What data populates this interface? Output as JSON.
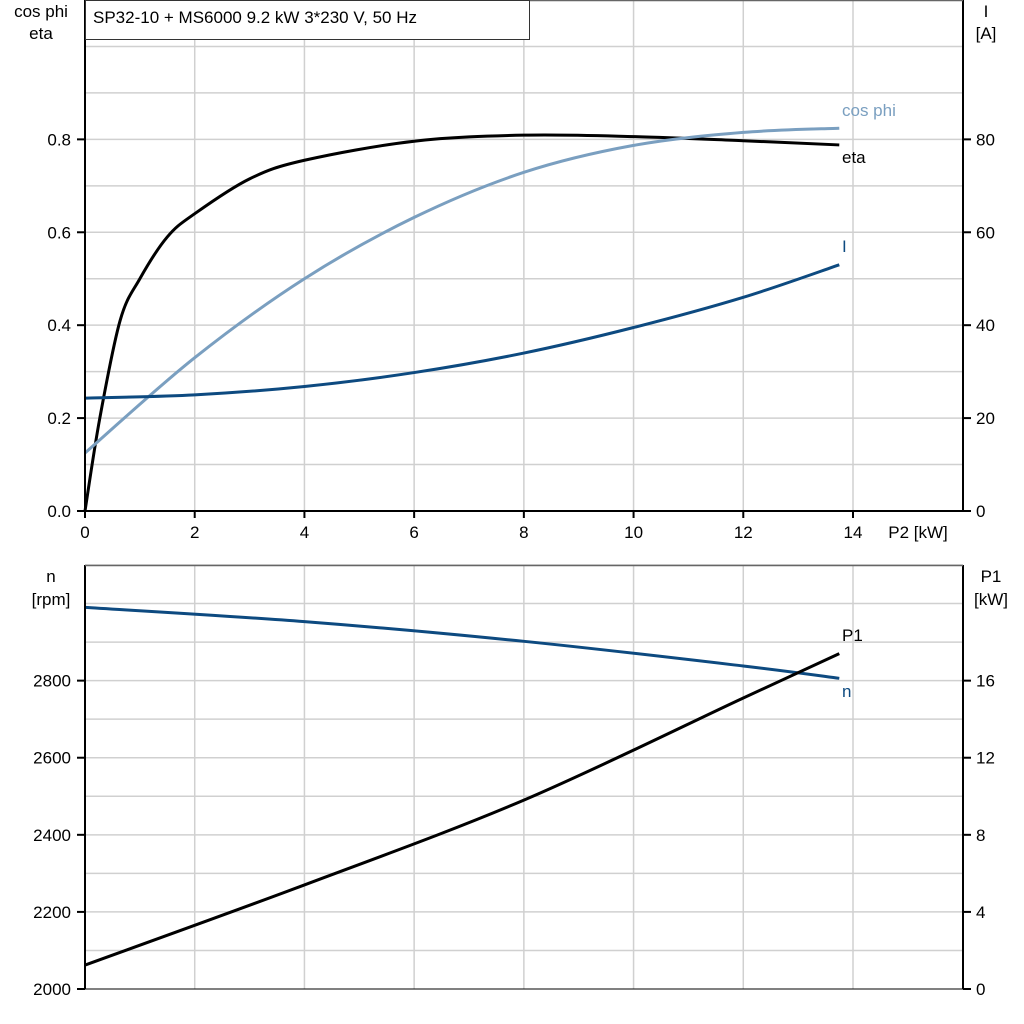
{
  "title": "SP32-10 + MS6000   9.2 kW   3*230 V, 50 Hz",
  "chart_data": [
    {
      "type": "line",
      "xlabel": "P2 [kW]",
      "xlim": [
        0,
        16
      ],
      "xticks": [
        0,
        2,
        4,
        6,
        8,
        10,
        12,
        14
      ],
      "ylabel_left": [
        "cos phi",
        "eta"
      ],
      "ylim_left": [
        0,
        1.1
      ],
      "yticks_left": [
        0.0,
        0.2,
        0.4,
        0.6,
        0.8
      ],
      "ylabel_right": [
        "I",
        "[A]"
      ],
      "ylim_right": [
        0,
        110
      ],
      "yticks_right": [
        0,
        20,
        40,
        60,
        80
      ],
      "grid": true,
      "series": [
        {
          "name": "eta",
          "axis": "left",
          "color": "#000000",
          "x": [
            0,
            0.27,
            0.64,
            1,
            1.5,
            2,
            3,
            4,
            6,
            8,
            10,
            12,
            13.75
          ],
          "y": [
            0,
            0.2,
            0.41,
            0.5,
            0.59,
            0.64,
            0.715,
            0.755,
            0.796,
            0.809,
            0.806,
            0.797,
            0.788
          ]
        },
        {
          "name": "cos phi",
          "axis": "left",
          "color": "#7a9fc0",
          "x": [
            0,
            2,
            4,
            6,
            8,
            10,
            12,
            13.75
          ],
          "y": [
            0.125,
            0.33,
            0.5,
            0.632,
            0.729,
            0.787,
            0.815,
            0.824
          ]
        },
        {
          "name": "I",
          "axis": "right",
          "color": "#0d4a80",
          "x": [
            0,
            2,
            4,
            6,
            8,
            10,
            12,
            13.75
          ],
          "y": [
            24.3,
            25,
            26.8,
            29.8,
            34,
            39.5,
            46,
            53
          ]
        }
      ]
    },
    {
      "type": "line",
      "xlim": [
        0,
        16
      ],
      "ylabel_left": [
        "n",
        "[rpm]"
      ],
      "ylim_left": [
        2000,
        3100
      ],
      "yticks_left": [
        2000,
        2200,
        2400,
        2600,
        2800
      ],
      "ylabel_right": [
        "P1",
        "[kW]"
      ],
      "ylim_right": [
        0,
        22
      ],
      "yticks_right": [
        0,
        4,
        8,
        12,
        16
      ],
      "grid": true,
      "series": [
        {
          "name": "n",
          "axis": "left",
          "color": "#0d4a80",
          "x": [
            0,
            4,
            8,
            12,
            13.75
          ],
          "y": [
            2990,
            2953,
            2902,
            2838,
            2806
          ]
        },
        {
          "name": "P1",
          "axis": "right",
          "color": "#000000",
          "x": [
            0,
            4,
            8,
            12,
            13.75
          ],
          "y": [
            1.24,
            5.4,
            9.8,
            15.1,
            17.4
          ]
        }
      ]
    }
  ]
}
